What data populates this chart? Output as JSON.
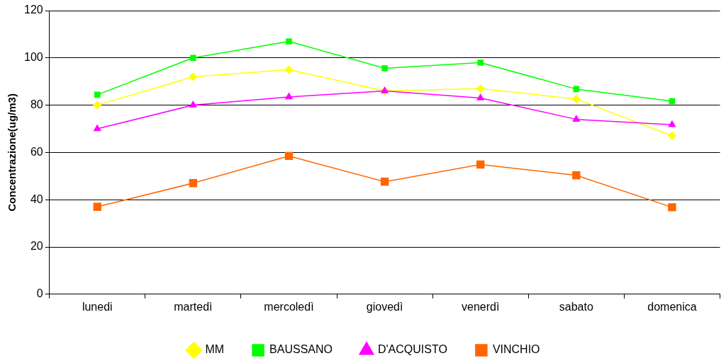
{
  "chart_data": {
    "type": "line",
    "ylabel": "Concentrazione(ug/m3)",
    "categories": [
      "lunedi",
      "martedì",
      "mercoledì",
      "giovedì",
      "venerdì",
      "sabato",
      "domenica"
    ],
    "series": [
      {
        "name": "MM",
        "color": "#ffff00",
        "marker": "diamond",
        "values": [
          80,
          92,
          95,
          86,
          87,
          82.6,
          67
        ]
      },
      {
        "name": "BAUSSANO",
        "color": "#00ff00",
        "marker": "square",
        "values": [
          84.4,
          100,
          107,
          95.6,
          98,
          86.8,
          81.7
        ]
      },
      {
        "name": "D'ACQUISTO",
        "color": "#ff00ff",
        "marker": "triangle",
        "values": [
          70,
          80,
          83.5,
          86,
          83,
          74,
          71.7
        ]
      },
      {
        "name": "VINCHIO",
        "color": "#ff6600",
        "marker": "square",
        "values": [
          37,
          47,
          58.5,
          47.6,
          54.9,
          50.3,
          36.8
        ]
      }
    ],
    "ylim": [
      0,
      120
    ],
    "yticks": [
      0,
      20,
      40,
      60,
      80,
      100,
      120
    ],
    "grid": "y",
    "legend": "bottom"
  }
}
